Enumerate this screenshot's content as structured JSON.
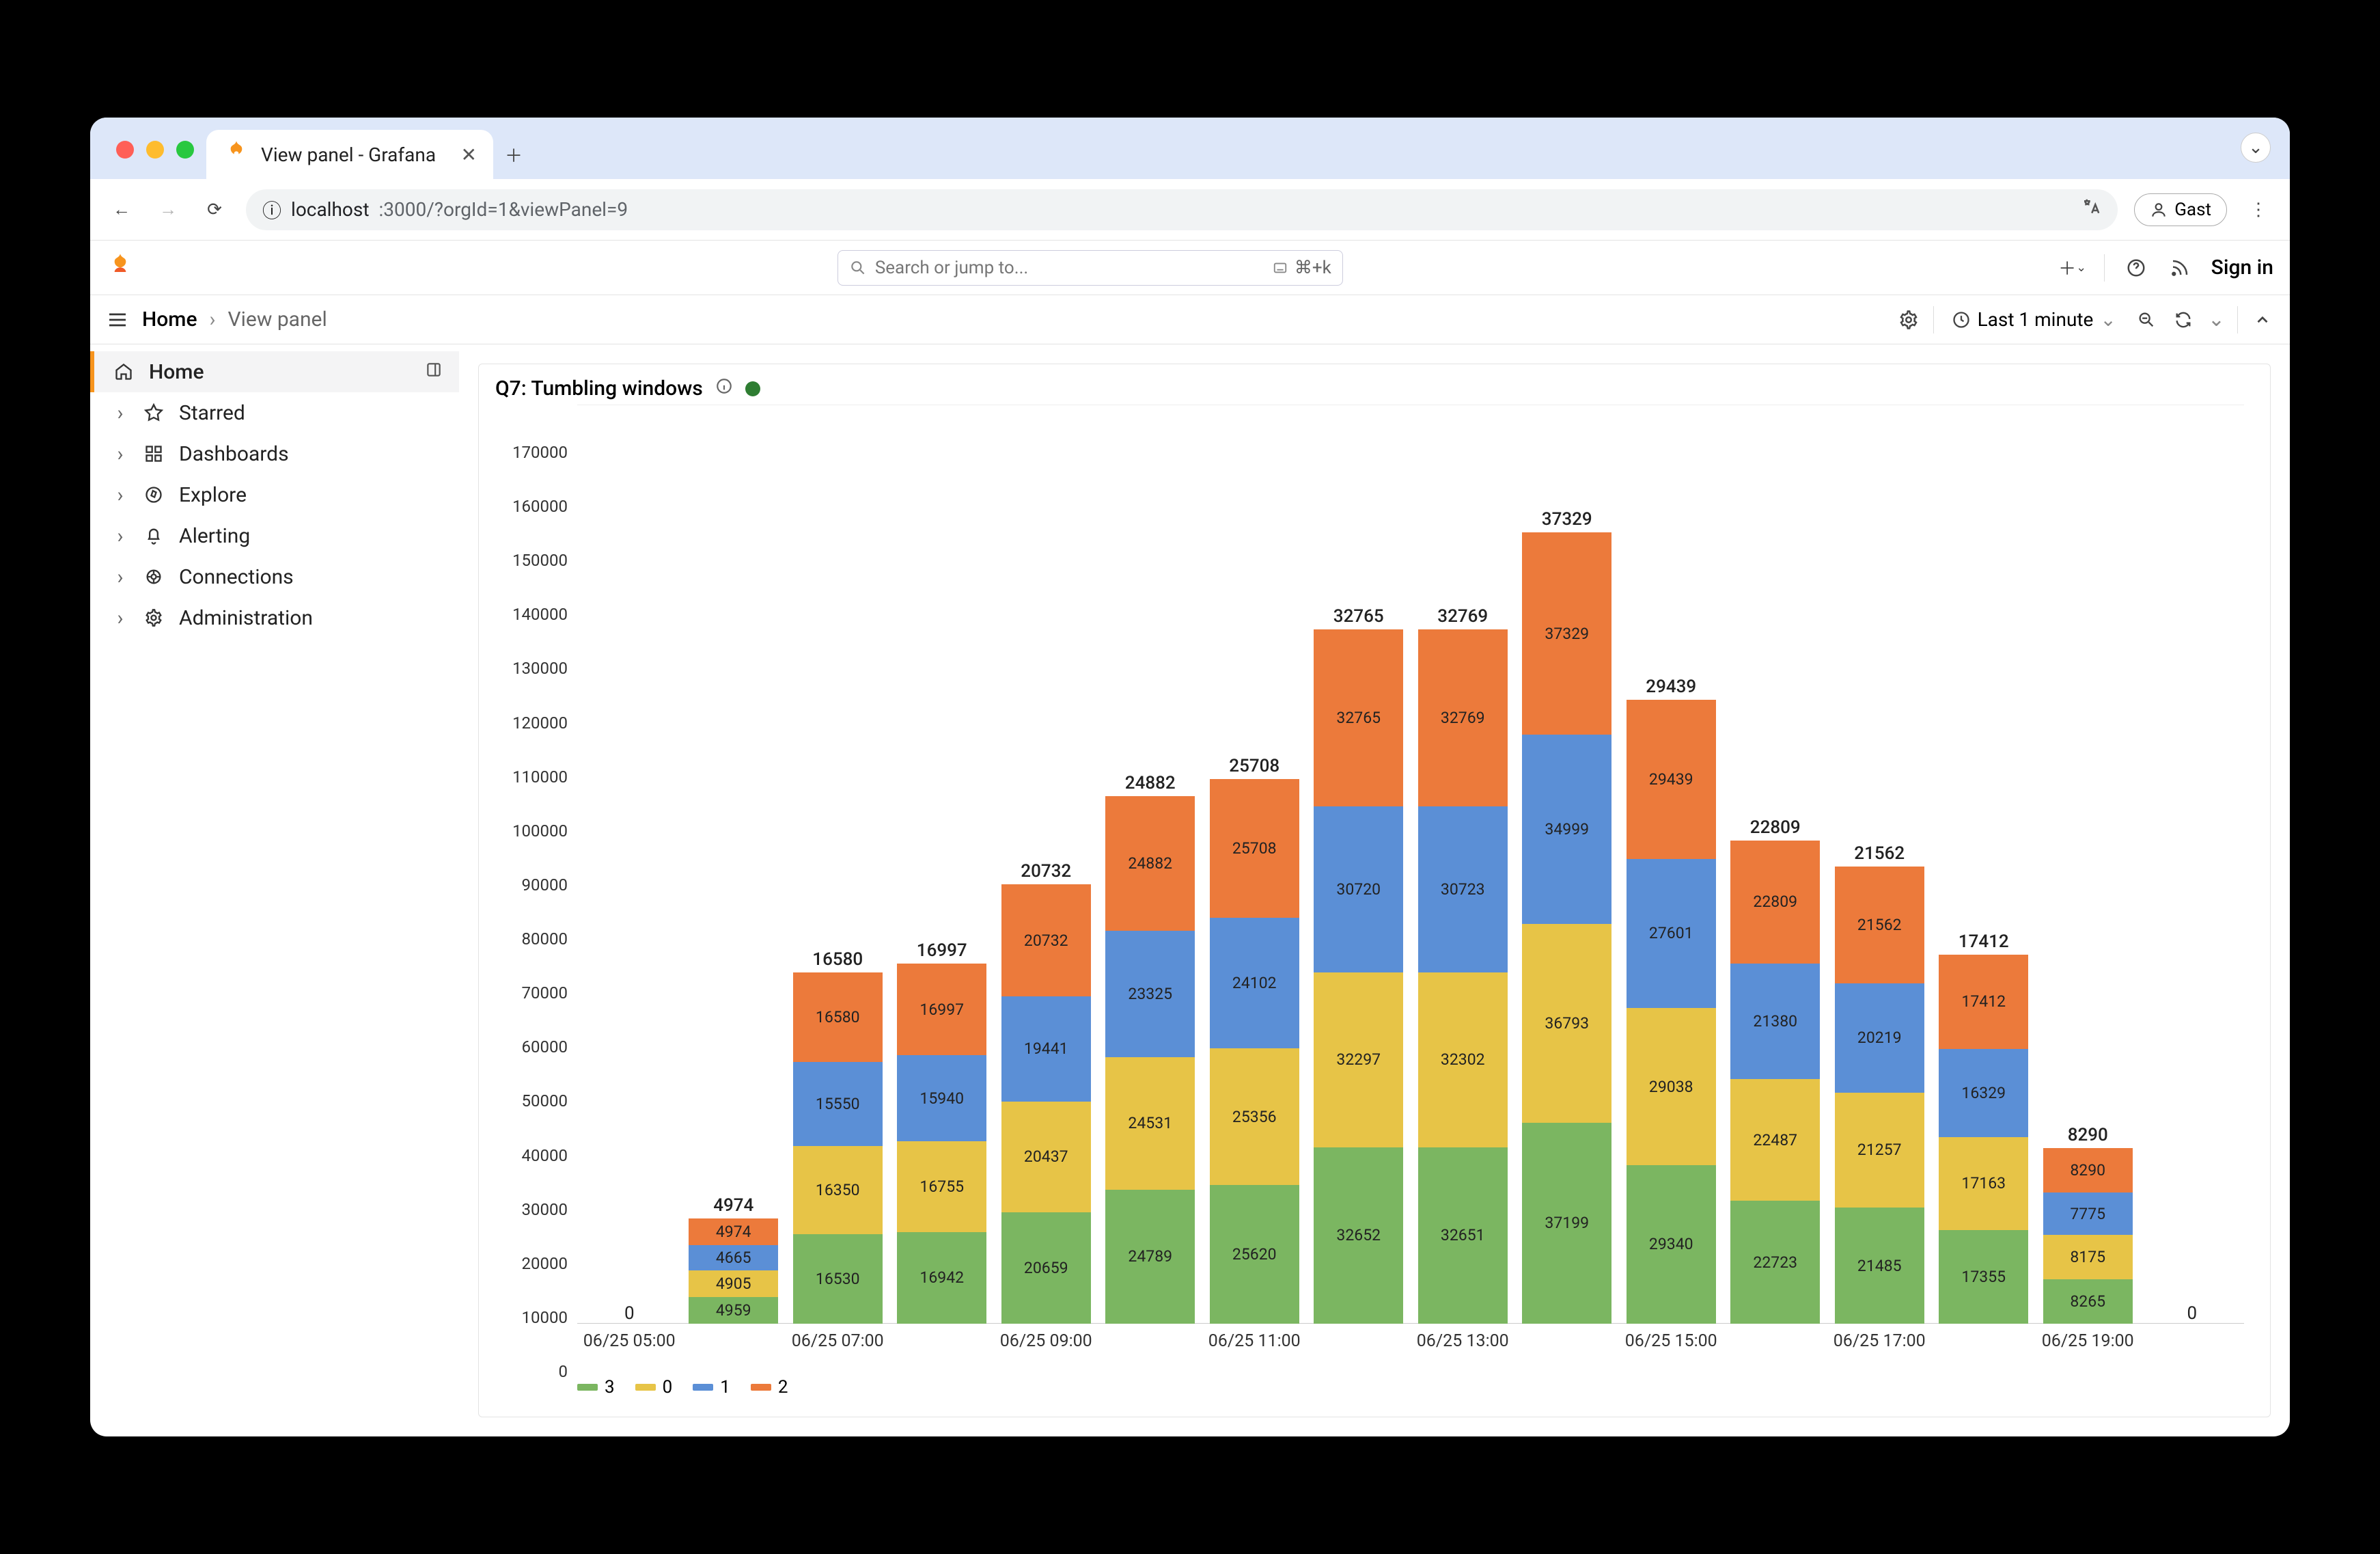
{
  "browser": {
    "tab_title": "View panel - Grafana",
    "url_host": "localhost",
    "url_path": ":3000/?orgId=1&viewPanel=9",
    "guest_label": "Gast"
  },
  "topbar": {
    "search_placeholder": "Search or jump to...",
    "kbd_hint": "⌘+k",
    "sign_in": "Sign in"
  },
  "crumbs": {
    "root": "Home",
    "leaf": "View panel"
  },
  "time_picker": {
    "label": "Last 1 minute"
  },
  "sidebar": {
    "items": [
      {
        "label": "Home",
        "icon": "home",
        "active": true
      },
      {
        "label": "Starred",
        "icon": "star"
      },
      {
        "label": "Dashboards",
        "icon": "grid"
      },
      {
        "label": "Explore",
        "icon": "compass"
      },
      {
        "label": "Alerting",
        "icon": "bell"
      },
      {
        "label": "Connections",
        "icon": "link"
      },
      {
        "label": "Administration",
        "icon": "gear"
      }
    ]
  },
  "panel": {
    "title": "Q7: Tumbling windows"
  },
  "chart": {
    "type": "stacked-bar",
    "ylim": [
      0,
      170000
    ],
    "ytick_step": 10000,
    "series_colors": {
      "3": "#7bb661",
      "0": "#e7c447",
      "1": "#5b8fd6",
      "2": "#ec7a3b"
    },
    "legend_order": [
      "3",
      "0",
      "1",
      "2"
    ],
    "x_labels": [
      "06/25 05:00",
      "06/25 07:00",
      "06/25 09:00",
      "06/25 11:00",
      "06/25 13:00",
      "06/25 15:00",
      "06/25 17:00",
      "06/25 19:00"
    ],
    "bars": [
      {
        "top": 0,
        "segments": null
      },
      {
        "top": 4974,
        "segments": {
          "3": 4959,
          "0": 4905,
          "1": 4665,
          "2": 4974
        }
      },
      {
        "top": 16580,
        "segments": {
          "3": 16530,
          "0": 16350,
          "1": 15550,
          "2": 16580
        }
      },
      {
        "top": 16997,
        "segments": {
          "3": 16942,
          "0": 16755,
          "1": 15940,
          "2": 16997
        }
      },
      {
        "top": 20732,
        "segments": {
          "3": 20659,
          "0": 20437,
          "1": 19441,
          "2": 20732
        }
      },
      {
        "top": 24882,
        "segments": {
          "3": 24789,
          "0": 24531,
          "1": 23325,
          "2": 24882
        }
      },
      {
        "top": 25708,
        "segments": {
          "3": 25620,
          "0": 25356,
          "1": 24102,
          "2": 25708
        }
      },
      {
        "top": 32765,
        "segments": {
          "3": 32652,
          "0": 32297,
          "1": 30720,
          "2": 32765
        }
      },
      {
        "top": 32769,
        "segments": {
          "3": 32651,
          "0": 32302,
          "1": 30723,
          "2": 32769
        }
      },
      {
        "top": 37329,
        "segments": {
          "3": 37199,
          "0": 36793,
          "1": 34999,
          "2": 37329
        }
      },
      {
        "top": 29439,
        "segments": {
          "3": 29340,
          "0": 29038,
          "1": 27601,
          "2": 29439
        }
      },
      {
        "top": 22809,
        "segments": {
          "3": 22723,
          "0": 22487,
          "1": 21380,
          "2": 22809
        }
      },
      {
        "top": 21562,
        "segments": {
          "3": 21485,
          "0": 21257,
          "1": 20219,
          "2": 21562
        }
      },
      {
        "top": 17412,
        "segments": {
          "3": 17355,
          "0": 17163,
          "1": 16329,
          "2": 17412
        }
      },
      {
        "top": 8290,
        "segments": {
          "3": 8265,
          "0": 8175,
          "1": 7775,
          "2": 8290
        }
      },
      {
        "top": 0,
        "segments": null
      }
    ]
  }
}
